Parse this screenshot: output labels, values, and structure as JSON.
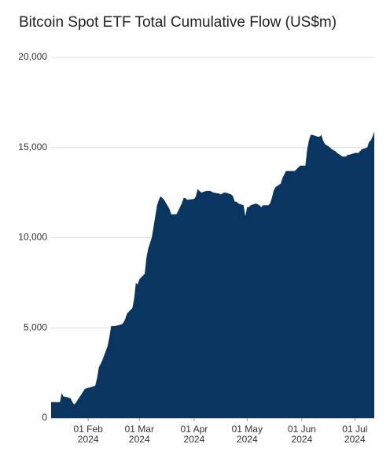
{
  "chart_data": {
    "type": "area",
    "title": "Bitcoin Spot ETF Total Cumulative Flow (US$m)",
    "color": "#0a3560",
    "grid": true,
    "xlim": [
      "2024-01-11",
      "2024-07-12"
    ],
    "xticks": [
      {
        "value": "2024-02-01",
        "label": "01 Feb 2024"
      },
      {
        "value": "2024-03-01",
        "label": "01 Mar 2024"
      },
      {
        "value": "2024-04-01",
        "label": "01 Apr 2024"
      },
      {
        "value": "2024-05-01",
        "label": "01 May 2024"
      },
      {
        "value": "2024-06-01",
        "label": "01 Jun 2024"
      },
      {
        "value": "2024-07-01",
        "label": "01 Jul 2024"
      }
    ],
    "ylim": [
      0,
      20000
    ],
    "yticks": [
      0,
      {
        "value": 5000,
        "label": "5,000"
      },
      {
        "value": 10000,
        "label": "10,000"
      },
      {
        "value": 15000,
        "label": "15,000"
      },
      {
        "value": 20000,
        "label": "20,000"
      }
    ],
    "x": [
      "2024-01-11",
      "2024-01-12",
      "2024-01-16",
      "2024-01-17",
      "2024-01-18",
      "2024-01-19",
      "2024-01-22",
      "2024-01-23",
      "2024-01-24",
      "2024-01-25",
      "2024-01-26",
      "2024-01-29",
      "2024-01-30",
      "2024-01-31",
      "2024-02-01",
      "2024-02-02",
      "2024-02-05",
      "2024-02-06",
      "2024-02-07",
      "2024-02-08",
      "2024-02-09",
      "2024-02-12",
      "2024-02-13",
      "2024-02-14",
      "2024-02-15",
      "2024-02-16",
      "2024-02-20",
      "2024-02-21",
      "2024-02-22",
      "2024-02-23",
      "2024-02-26",
      "2024-02-27",
      "2024-02-28",
      "2024-02-29",
      "2024-03-01",
      "2024-03-04",
      "2024-03-05",
      "2024-03-06",
      "2024-03-07",
      "2024-03-08",
      "2024-03-11",
      "2024-03-12",
      "2024-03-13",
      "2024-03-14",
      "2024-03-15",
      "2024-03-18",
      "2024-03-19",
      "2024-03-20",
      "2024-03-21",
      "2024-03-22",
      "2024-03-25",
      "2024-03-26",
      "2024-03-27",
      "2024-03-28",
      "2024-04-01",
      "2024-04-02",
      "2024-04-03",
      "2024-04-04",
      "2024-04-05",
      "2024-04-08",
      "2024-04-09",
      "2024-04-10",
      "2024-04-11",
      "2024-04-12",
      "2024-04-15",
      "2024-04-16",
      "2024-04-17",
      "2024-04-18",
      "2024-04-19",
      "2024-04-22",
      "2024-04-23",
      "2024-04-24",
      "2024-04-25",
      "2024-04-26",
      "2024-04-29",
      "2024-04-30",
      "2024-05-01",
      "2024-05-02",
      "2024-05-03",
      "2024-05-06",
      "2024-05-07",
      "2024-05-08",
      "2024-05-09",
      "2024-05-10",
      "2024-05-13",
      "2024-05-14",
      "2024-05-15",
      "2024-05-16",
      "2024-05-17",
      "2024-05-20",
      "2024-05-21",
      "2024-05-22",
      "2024-05-23",
      "2024-05-24",
      "2024-05-28",
      "2024-05-29",
      "2024-05-30",
      "2024-05-31",
      "2024-06-03",
      "2024-06-04",
      "2024-06-05",
      "2024-06-06",
      "2024-06-07",
      "2024-06-10",
      "2024-06-11",
      "2024-06-12",
      "2024-06-13",
      "2024-06-14",
      "2024-06-17",
      "2024-06-18",
      "2024-06-20",
      "2024-06-21",
      "2024-06-24",
      "2024-06-25",
      "2024-06-26",
      "2024-06-27",
      "2024-06-28",
      "2024-07-01",
      "2024-07-02",
      "2024-07-03",
      "2024-07-05",
      "2024-07-08",
      "2024-07-09",
      "2024-07-10",
      "2024-07-11",
      "2024-07-12"
    ],
    "values": [
      890,
      890,
      880,
      1380,
      1200,
      1180,
      1100,
      900,
      750,
      850,
      1000,
      1450,
      1600,
      1650,
      1680,
      1700,
      1800,
      2200,
      2800,
      3000,
      3200,
      4000,
      4500,
      5100,
      5100,
      5100,
      5200,
      5300,
      5500,
      5800,
      6100,
      6600,
      7500,
      7400,
      7700,
      8000,
      8900,
      9400,
      9700,
      10000,
      11800,
      12100,
      12300,
      12200,
      12100,
      11600,
      11300,
      11300,
      11300,
      11300,
      11900,
      12200,
      12200,
      12100,
      12150,
      12300,
      12700,
      12600,
      12500,
      12600,
      12600,
      12600,
      12550,
      12500,
      12450,
      12400,
      12450,
      12500,
      12500,
      12400,
      12300,
      12000,
      12000,
      11900,
      11800,
      11200,
      11700,
      11700,
      11800,
      11900,
      11850,
      11800,
      11700,
      11800,
      11800,
      11900,
      12200,
      12600,
      12800,
      13000,
      13300,
      13500,
      13700,
      13700,
      13700,
      13800,
      13900,
      14000,
      14000,
      14900,
      15400,
      15700,
      15700,
      15600,
      15600,
      15700,
      15400,
      15200,
      15000,
      14900,
      14800,
      14700,
      14500,
      14500,
      14500,
      14600,
      14600,
      14700,
      14700,
      14700,
      14900,
      15000,
      15300,
      15400,
      15600,
      15900
    ]
  }
}
